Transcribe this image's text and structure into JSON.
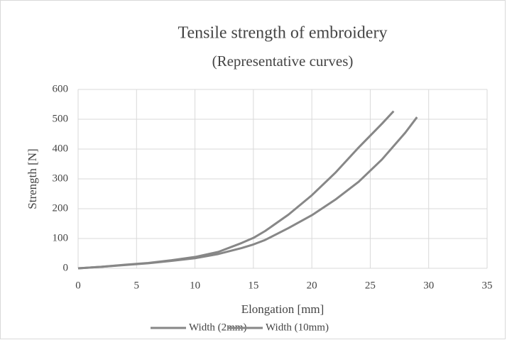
{
  "chart_data": {
    "type": "line",
    "title": "Tensile strength of embroidery",
    "subtitle": "(Representative curves)",
    "x_label": "Elongation [mm]",
    "y_label": "Strength [N]",
    "xlim": [
      0,
      35
    ],
    "xticks": [
      0,
      5,
      10,
      15,
      20,
      25,
      30,
      35
    ],
    "ylim": [
      0,
      600
    ],
    "yticks": [
      0,
      100,
      200,
      300,
      400,
      500,
      600
    ],
    "grid": true,
    "legend": "bottom",
    "series": [
      {
        "name": "Width (2mm)",
        "color": "#878787",
        "x": [
          0,
          2,
          4,
          6,
          8,
          10,
          12,
          14,
          15,
          16,
          18,
          20,
          22,
          24,
          26,
          27
        ],
        "values": [
          0,
          5,
          12,
          18,
          27,
          38,
          55,
          85,
          102,
          125,
          180,
          245,
          320,
          405,
          485,
          527
        ]
      },
      {
        "name": "Width (10mm)",
        "color": "#878787",
        "x": [
          0,
          2,
          4,
          6,
          8,
          10,
          12,
          14,
          15,
          16,
          18,
          20,
          22,
          24,
          26,
          28,
          29
        ],
        "values": [
          0,
          5,
          11,
          17,
          25,
          34,
          48,
          68,
          80,
          95,
          135,
          178,
          230,
          290,
          365,
          455,
          507
        ]
      }
    ]
  }
}
